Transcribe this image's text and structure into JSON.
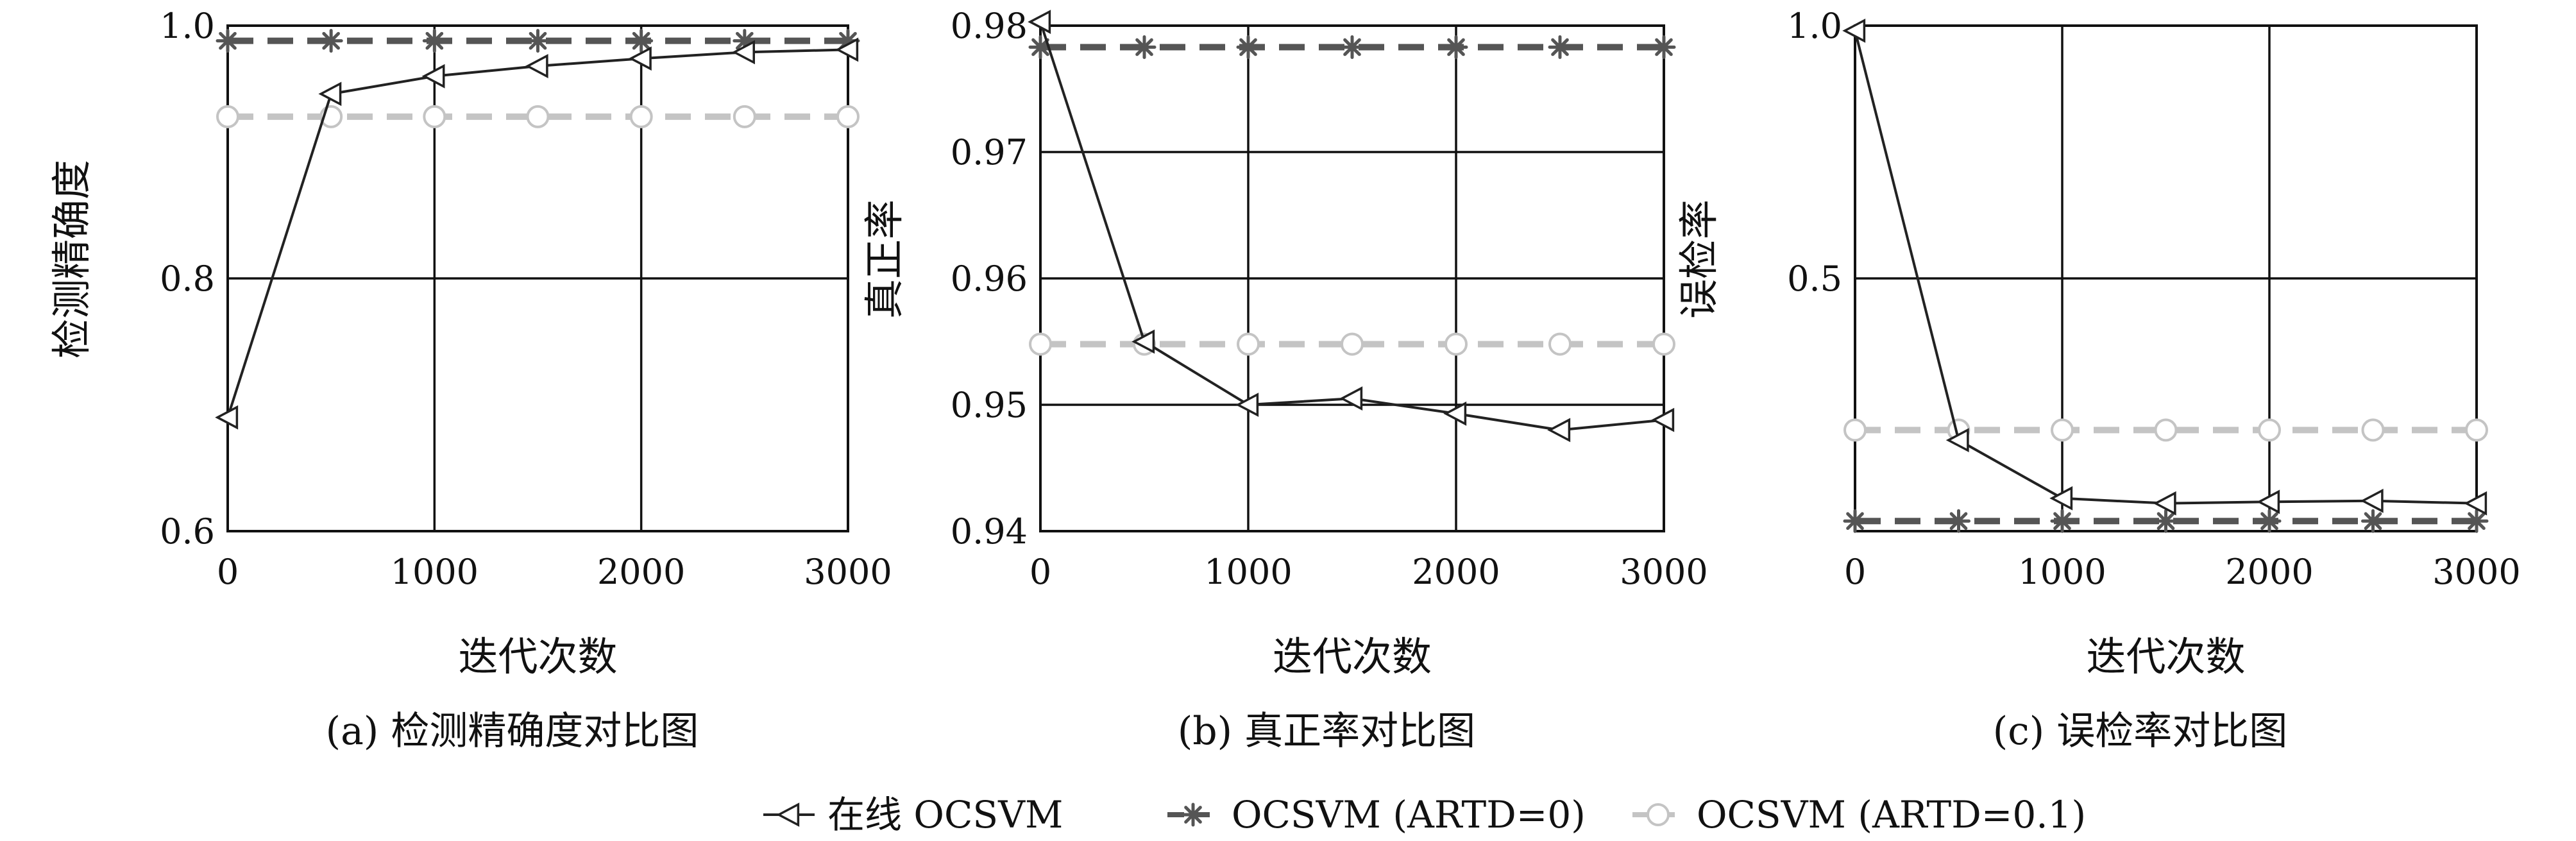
{
  "chart_data": [
    {
      "type": "line",
      "caption": "(a) 检测精确度对比图",
      "xlabel": "迭代次数",
      "ylabel": "检测精确度",
      "xlim": [
        0,
        3000
      ],
      "ylim": [
        0.6,
        1.0
      ],
      "xticks": [
        0,
        1000,
        2000,
        3000
      ],
      "xtick_labels": [
        "0",
        "1000",
        "2000",
        "3000"
      ],
      "yticks": [
        0.6,
        0.8,
        1.0
      ],
      "ytick_labels": [
        "0.6",
        "0.8",
        "1.0"
      ],
      "grid": true,
      "series": [
        {
          "name": "在线 OCSVM",
          "x": [
            0,
            500,
            1000,
            1500,
            2000,
            2500,
            3000
          ],
          "values": [
            0.69,
            0.946,
            0.96,
            0.968,
            0.974,
            0.979,
            0.981
          ]
        },
        {
          "name": "OCSVM (ARTD=0)",
          "x": [
            0,
            500,
            1000,
            1500,
            2000,
            2500,
            3000
          ],
          "values": [
            0.988,
            0.988,
            0.988,
            0.988,
            0.988,
            0.988,
            0.988
          ]
        },
        {
          "name": "OCSVM (ARTD=0.1)",
          "x": [
            0,
            500,
            1000,
            1500,
            2000,
            2500,
            3000
          ],
          "values": [
            0.928,
            0.928,
            0.928,
            0.928,
            0.928,
            0.928,
            0.928
          ]
        }
      ]
    },
    {
      "type": "line",
      "caption": "(b) 真正率对比图",
      "xlabel": "迭代次数",
      "ylabel": "真正率",
      "xlim": [
        0,
        3000
      ],
      "ylim": [
        0.94,
        0.98
      ],
      "xticks": [
        0,
        1000,
        2000,
        3000
      ],
      "xtick_labels": [
        "0",
        "1000",
        "2000",
        "3000"
      ],
      "yticks": [
        0.94,
        0.95,
        0.96,
        0.97,
        0.98
      ],
      "ytick_labels": [
        "0.94",
        "0.95",
        "0.96",
        "0.97",
        "0.98"
      ],
      "grid": true,
      "series": [
        {
          "name": "在线 OCSVM",
          "x": [
            0,
            500,
            1000,
            1500,
            2000,
            2500,
            3000
          ],
          "values": [
            0.9803,
            0.955,
            0.95,
            0.9505,
            0.9493,
            0.948,
            0.9488
          ]
        },
        {
          "name": "OCSVM (ARTD=0)",
          "x": [
            0,
            500,
            1000,
            1500,
            2000,
            2500,
            3000
          ],
          "values": [
            0.9783,
            0.9783,
            0.9783,
            0.9783,
            0.9783,
            0.9783,
            0.9783
          ]
        },
        {
          "name": "OCSVM (ARTD=0.1)",
          "x": [
            0,
            500,
            1000,
            1500,
            2000,
            2500,
            3000
          ],
          "values": [
            0.9548,
            0.9548,
            0.9548,
            0.9548,
            0.9548,
            0.9548,
            0.9548
          ]
        }
      ]
    },
    {
      "type": "line",
      "caption": "(c) 误检率对比图",
      "xlabel": "迭代次数",
      "ylabel": "误检率",
      "xlim": [
        0,
        3000
      ],
      "ylim": [
        0.0,
        1.0
      ],
      "xticks": [
        0,
        1000,
        2000,
        3000
      ],
      "xtick_labels": [
        "0",
        "1000",
        "2000",
        "3000"
      ],
      "yticks": [
        0.5,
        1.0
      ],
      "ytick_labels": [
        "0.5",
        "1.0"
      ],
      "grid": true,
      "series": [
        {
          "name": "在线 OCSVM",
          "x": [
            0,
            500,
            1000,
            1500,
            2000,
            2500,
            3000
          ],
          "values": [
            0.99,
            0.18,
            0.065,
            0.055,
            0.058,
            0.06,
            0.055
          ]
        },
        {
          "name": "OCSVM (ARTD=0)",
          "x": [
            0,
            500,
            1000,
            1500,
            2000,
            2500,
            3000
          ],
          "values": [
            0.02,
            0.02,
            0.02,
            0.02,
            0.02,
            0.02,
            0.02
          ]
        },
        {
          "name": "OCSVM (ARTD=0.1)",
          "x": [
            0,
            500,
            1000,
            1500,
            2000,
            2500,
            3000
          ],
          "values": [
            0.2,
            0.2,
            0.2,
            0.2,
            0.2,
            0.2,
            0.2
          ]
        }
      ]
    }
  ],
  "legend": {
    "placement": "bottom-center",
    "entries": [
      {
        "label": "在线 OCSVM",
        "marker": "triangle-left-icon",
        "color": "#222222",
        "dash": "solid"
      },
      {
        "label": "OCSVM (ARTD=0)",
        "marker": "asterisk-icon",
        "color": "#555555",
        "dash": "dashed"
      },
      {
        "label": "OCSVM (ARTD=0.1)",
        "marker": "circle-icon",
        "color": "#c4c4c4",
        "dash": "dashed"
      }
    ]
  }
}
